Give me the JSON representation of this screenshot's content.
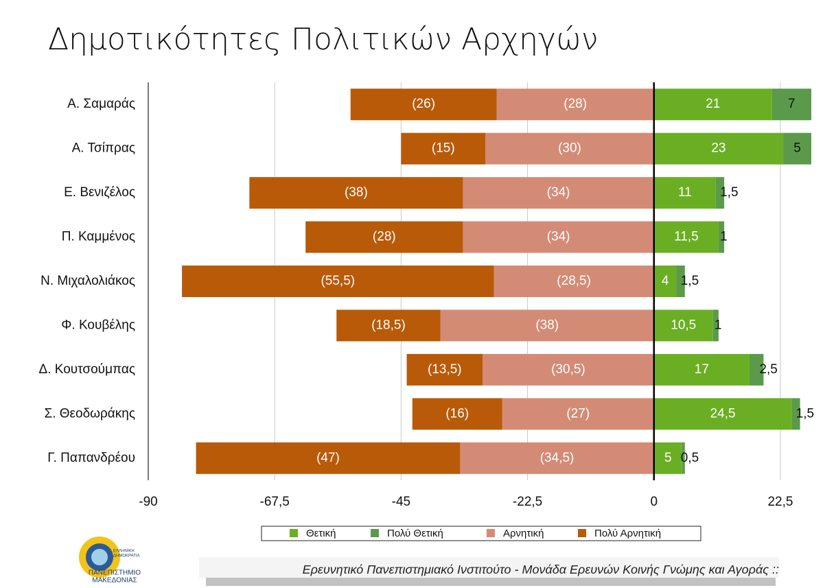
{
  "chart_data": {
    "type": "diverging_bar",
    "title": "Δημοτικότητες Πολιτικών Αρχηγών",
    "categories": [
      "Α. Σαμαράς",
      "Α. Τσίπρας",
      "Ε. Βενιζέλος",
      "Π. Καμμένος",
      "Ν. Μιχαλολιάκος",
      "Φ. Κουβέλης",
      "Δ. Κουτσούμπας",
      "Σ. Θεοδωράκης",
      "Γ. Παπανδρέου"
    ],
    "series": [
      {
        "name": "Θετική",
        "color": "#6aaf23",
        "values": [
          21,
          23,
          11,
          11.5,
          4,
          10.5,
          17,
          24.5,
          5
        ],
        "value_labels": [
          "21",
          "23",
          "11",
          "11,5",
          "4",
          "10,5",
          "17",
          "24,5",
          "5"
        ]
      },
      {
        "name": "Πολύ Θετική",
        "color": "#5b9a4b",
        "values": [
          7,
          5,
          1.5,
          1,
          1.5,
          1,
          2.5,
          1.5,
          0.5
        ],
        "value_labels": [
          "7",
          "5",
          "1,5",
          "1",
          "1,5",
          "1",
          "2,5",
          "1,5",
          "0,5"
        ]
      },
      {
        "name": "Αρνητική",
        "color": "#d48b76",
        "values": [
          -28,
          -30,
          -34,
          -34,
          -28.5,
          -38,
          -30.5,
          -27,
          -34.5
        ],
        "value_labels": [
          "(28)",
          "(30)",
          "(34)",
          "(34)",
          "(28,5)",
          "(38)",
          "(30,5)",
          "(27)",
          "(34,5)"
        ]
      },
      {
        "name": "Πολύ Αρνητική",
        "color": "#b95a08",
        "values": [
          -26,
          -15,
          -38,
          -28,
          -55.5,
          -18.5,
          -13.5,
          -16,
          -47
        ],
        "value_labels": [
          "(26)",
          "(15)",
          "(38)",
          "(28)",
          "(55,5)",
          "(18,5)",
          "(13,5)",
          "(16)",
          "(47)"
        ]
      }
    ],
    "xlim": [
      -90,
      28
    ],
    "xticks": [
      -90,
      {
        "value": -67.5,
        "label": "-67,5"
      },
      -45,
      {
        "value": -22.5,
        "label": "-22,5"
      },
      0,
      {
        "value": 22.5,
        "label": "22,5"
      }
    ],
    "grid": true,
    "legend": "bottom"
  },
  "logo": {
    "line1": "ΕΛΛΗΝΙΚΗ",
    "line2": "ΔΗΜΟΚΡΑΤΙΑ",
    "line3": "ΠΑΝΕΠΙΣΤΗΜΙΟ",
    "line4": "ΜΑΚΕΔΟΝΙΑΣ"
  },
  "footer": "Ερευνητικό Πανεπιστημιακό Ινστιτούτο - Μονάδα Ερευνών Κοινής Γνώμης και Αγοράς ::"
}
